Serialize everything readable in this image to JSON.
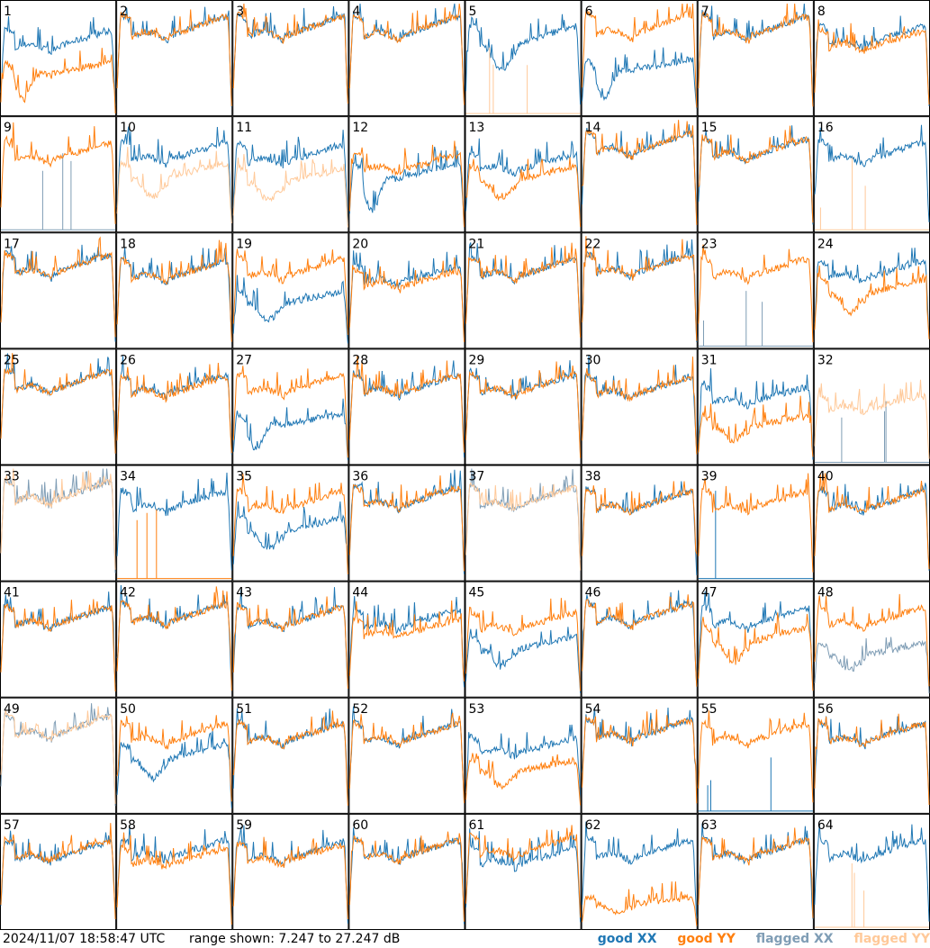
{
  "footer": {
    "timestamp": "2024/11/07 18:58:47 UTC",
    "range_text": "range shown: 7.247 to 27.247 dB"
  },
  "legend": [
    {
      "label": "good XX",
      "color": "#1f77b4"
    },
    {
      "label": "good YY",
      "color": "#ff7f0e"
    },
    {
      "label": "flagged XX",
      "color": "#7f9db5"
    },
    {
      "label": "flagged YY",
      "color": "#ffc999"
    }
  ],
  "chart_data": {
    "type": "line",
    "title": "",
    "grid_rows": 8,
    "grid_cols": 8,
    "ylim": [
      7.247,
      27.247
    ],
    "yunit": "dB",
    "series_names": [
      "good XX",
      "good YY",
      "flagged XX",
      "flagged YY"
    ],
    "panels": [
      {
        "label": "1",
        "xx": "good",
        "yy": "good",
        "xx_shape": "normal",
        "yy_shape": "deep_drop",
        "xx_level": 0.68,
        "yy_level": 0.42
      },
      {
        "label": "2",
        "xx": "good",
        "yy": "good",
        "xx_shape": "normal",
        "yy_shape": "normal",
        "xx_level": 0.8,
        "yy_level": 0.8
      },
      {
        "label": "3",
        "xx": "good",
        "yy": "good",
        "xx_shape": "normal",
        "yy_shape": "normal",
        "xx_level": 0.8,
        "yy_level": 0.8
      },
      {
        "label": "4",
        "xx": "good",
        "yy": "good",
        "xx_shape": "normal",
        "yy_shape": "normal",
        "xx_level": 0.8,
        "yy_level": 0.8
      },
      {
        "label": "5",
        "xx": "good",
        "yy": "flagged",
        "xx_shape": "dip",
        "yy_shape": "spikes_low",
        "xx_level": 0.72,
        "yy_level": 0.0
      },
      {
        "label": "6",
        "xx": "good",
        "yy": "good",
        "xx_shape": "deep_drop",
        "yy_shape": "normal",
        "xx_level": 0.45,
        "yy_level": 0.82
      },
      {
        "label": "7",
        "xx": "good",
        "yy": "good",
        "xx_shape": "normal",
        "yy_shape": "normal",
        "xx_level": 0.8,
        "yy_level": 0.8
      },
      {
        "label": "8",
        "xx": "good",
        "yy": "good",
        "xx_shape": "normal",
        "yy_shape": "normal",
        "xx_level": 0.72,
        "yy_level": 0.68
      },
      {
        "label": "9",
        "xx": "flagged",
        "yy": "good",
        "xx_shape": "spikes_low",
        "yy_shape": "normal",
        "xx_level": 0.0,
        "yy_level": 0.72
      },
      {
        "label": "10",
        "xx": "good",
        "yy": "flagged",
        "xx_shape": "normal",
        "yy_shape": "dip",
        "xx_level": 0.72,
        "yy_level": 0.55
      },
      {
        "label": "11",
        "xx": "good",
        "yy": "flagged",
        "xx_shape": "normal",
        "yy_shape": "dip",
        "xx_level": 0.7,
        "yy_level": 0.5
      },
      {
        "label": "12",
        "xx": "good",
        "yy": "good",
        "xx_shape": "deep_drop",
        "yy_shape": "normal",
        "xx_level": 0.55,
        "yy_level": 0.62
      },
      {
        "label": "13",
        "xx": "good",
        "yy": "good",
        "xx_shape": "normal",
        "yy_shape": "dip",
        "xx_level": 0.62,
        "yy_level": 0.52
      },
      {
        "label": "14",
        "xx": "good",
        "yy": "good",
        "xx_shape": "normal",
        "yy_shape": "normal",
        "xx_level": 0.8,
        "yy_level": 0.8
      },
      {
        "label": "15",
        "xx": "good",
        "yy": "good",
        "xx_shape": "normal",
        "yy_shape": "normal",
        "xx_level": 0.75,
        "yy_level": 0.75
      },
      {
        "label": "16",
        "xx": "good",
        "yy": "flagged",
        "xx_shape": "normal",
        "yy_shape": "spikes_low",
        "xx_level": 0.72,
        "yy_level": 0.0
      },
      {
        "label": "17",
        "xx": "good",
        "yy": "good",
        "xx_shape": "normal",
        "yy_shape": "normal",
        "xx_level": 0.75,
        "yy_level": 0.75
      },
      {
        "label": "18",
        "xx": "good",
        "yy": "good",
        "xx_shape": "normal",
        "yy_shape": "normal",
        "xx_level": 0.7,
        "yy_level": 0.7
      },
      {
        "label": "19",
        "xx": "good",
        "yy": "good",
        "xx_shape": "dip",
        "yy_shape": "normal",
        "xx_level": 0.45,
        "yy_level": 0.72
      },
      {
        "label": "20",
        "xx": "good",
        "yy": "good",
        "xx_shape": "normal",
        "yy_shape": "normal",
        "xx_level": 0.66,
        "yy_level": 0.62
      },
      {
        "label": "21",
        "xx": "good",
        "yy": "good",
        "xx_shape": "normal",
        "yy_shape": "normal",
        "xx_level": 0.72,
        "yy_level": 0.72
      },
      {
        "label": "22",
        "xx": "good",
        "yy": "good",
        "xx_shape": "normal",
        "yy_shape": "normal",
        "xx_level": 0.75,
        "yy_level": 0.75
      },
      {
        "label": "23",
        "xx": "flagged",
        "yy": "good",
        "xx_shape": "spikes_low",
        "yy_shape": "normal",
        "xx_level": 0.0,
        "yy_level": 0.72
      },
      {
        "label": "24",
        "xx": "good",
        "yy": "good",
        "xx_shape": "normal",
        "yy_shape": "dip",
        "xx_level": 0.7,
        "yy_level": 0.55
      },
      {
        "label": "25",
        "xx": "good",
        "yy": "good",
        "xx_shape": "normal",
        "yy_shape": "normal",
        "xx_level": 0.75,
        "yy_level": 0.75
      },
      {
        "label": "26",
        "xx": "good",
        "yy": "good",
        "xx_shape": "normal",
        "yy_shape": "normal",
        "xx_level": 0.72,
        "yy_level": 0.7
      },
      {
        "label": "27",
        "xx": "good",
        "yy": "good",
        "xx_shape": "deep_drop",
        "yy_shape": "normal",
        "xx_level": 0.4,
        "yy_level": 0.72
      },
      {
        "label": "28",
        "xx": "good",
        "yy": "good",
        "xx_shape": "normal",
        "yy_shape": "normal",
        "xx_level": 0.72,
        "yy_level": 0.72
      },
      {
        "label": "29",
        "xx": "good",
        "yy": "good",
        "xx_shape": "normal",
        "yy_shape": "normal",
        "xx_level": 0.72,
        "yy_level": 0.72
      },
      {
        "label": "30",
        "xx": "good",
        "yy": "good",
        "xx_shape": "normal",
        "yy_shape": "normal",
        "xx_level": 0.7,
        "yy_level": 0.7
      },
      {
        "label": "31",
        "xx": "good",
        "yy": "good",
        "xx_shape": "normal",
        "yy_shape": "dip",
        "xx_level": 0.62,
        "yy_level": 0.38
      },
      {
        "label": "32",
        "xx": "flagged",
        "yy": "flagged",
        "xx_shape": "spikes_low",
        "yy_shape": "normal",
        "xx_level": 0.0,
        "yy_level": 0.55
      },
      {
        "label": "33",
        "xx": "flagged",
        "yy": "flagged",
        "xx_shape": "normal",
        "yy_shape": "normal",
        "xx_level": 0.8,
        "yy_level": 0.8
      },
      {
        "label": "34",
        "xx": "good",
        "yy": "good",
        "xx_shape": "normal",
        "yy_shape": "spikes_low",
        "xx_level": 0.72,
        "yy_level": 0.0
      },
      {
        "label": "35",
        "xx": "good",
        "yy": "good",
        "xx_shape": "dip",
        "yy_shape": "normal",
        "xx_level": 0.5,
        "yy_level": 0.72
      },
      {
        "label": "36",
        "xx": "good",
        "yy": "good",
        "xx_shape": "normal",
        "yy_shape": "normal",
        "xx_level": 0.75,
        "yy_level": 0.75
      },
      {
        "label": "37",
        "xx": "flagged",
        "yy": "flagged",
        "xx_shape": "normal",
        "yy_shape": "normal",
        "xx_level": 0.75,
        "yy_level": 0.75
      },
      {
        "label": "38",
        "xx": "good",
        "yy": "good",
        "xx_shape": "normal",
        "yy_shape": "normal",
        "xx_level": 0.72,
        "yy_level": 0.72
      },
      {
        "label": "39",
        "xx": "good",
        "yy": "good",
        "xx_shape": "spike_single",
        "yy_shape": "normal",
        "xx_level": 0.0,
        "yy_level": 0.72
      },
      {
        "label": "40",
        "xx": "good",
        "yy": "good",
        "xx_shape": "normal",
        "yy_shape": "normal",
        "xx_level": 0.72,
        "yy_level": 0.72
      },
      {
        "label": "41",
        "xx": "good",
        "yy": "good",
        "xx_shape": "normal",
        "yy_shape": "normal",
        "xx_level": 0.72,
        "yy_level": 0.72
      },
      {
        "label": "42",
        "xx": "good",
        "yy": "good",
        "xx_shape": "normal",
        "yy_shape": "normal",
        "xx_level": 0.75,
        "yy_level": 0.75
      },
      {
        "label": "43",
        "xx": "good",
        "yy": "good",
        "xx_shape": "normal",
        "yy_shape": "normal",
        "xx_level": 0.72,
        "yy_level": 0.72
      },
      {
        "label": "44",
        "xx": "good",
        "yy": "good",
        "xx_shape": "normal",
        "yy_shape": "normal",
        "xx_level": 0.7,
        "yy_level": 0.62
      },
      {
        "label": "45",
        "xx": "good",
        "yy": "good",
        "xx_shape": "dip",
        "yy_shape": "normal",
        "xx_level": 0.48,
        "yy_level": 0.68
      },
      {
        "label": "46",
        "xx": "good",
        "yy": "good",
        "xx_shape": "normal",
        "yy_shape": "normal",
        "xx_level": 0.75,
        "yy_level": 0.75
      },
      {
        "label": "47",
        "xx": "good",
        "yy": "good",
        "xx_shape": "normal",
        "yy_shape": "dip",
        "xx_level": 0.72,
        "yy_level": 0.55
      },
      {
        "label": "48",
        "xx": "flagged",
        "yy": "good",
        "xx_shape": "dip",
        "yy_shape": "normal",
        "xx_level": 0.42,
        "yy_level": 0.72
      },
      {
        "label": "49",
        "xx": "flagged",
        "yy": "flagged",
        "xx_shape": "normal",
        "yy_shape": "normal",
        "xx_level": 0.78,
        "yy_level": 0.78
      },
      {
        "label": "50",
        "xx": "good",
        "yy": "good",
        "xx_shape": "dip",
        "yy_shape": "normal",
        "xx_level": 0.55,
        "yy_level": 0.72
      },
      {
        "label": "51",
        "xx": "good",
        "yy": "good",
        "xx_shape": "normal",
        "yy_shape": "normal",
        "xx_level": 0.72,
        "yy_level": 0.72
      },
      {
        "label": "52",
        "xx": "good",
        "yy": "good",
        "xx_shape": "normal",
        "yy_shape": "normal",
        "xx_level": 0.72,
        "yy_level": 0.72
      },
      {
        "label": "53",
        "xx": "good",
        "yy": "good",
        "xx_shape": "normal",
        "yy_shape": "dip",
        "xx_level": 0.6,
        "yy_level": 0.42
      },
      {
        "label": "54",
        "xx": "good",
        "yy": "good",
        "xx_shape": "normal",
        "yy_shape": "normal",
        "xx_level": 0.75,
        "yy_level": 0.75
      },
      {
        "label": "55",
        "xx": "good",
        "yy": "good",
        "xx_shape": "spikes_low",
        "yy_shape": "normal",
        "xx_level": 0.0,
        "yy_level": 0.72
      },
      {
        "label": "56",
        "xx": "good",
        "yy": "good",
        "xx_shape": "normal",
        "yy_shape": "normal",
        "xx_level": 0.72,
        "yy_level": 0.72
      },
      {
        "label": "57",
        "xx": "good",
        "yy": "good",
        "xx_shape": "normal",
        "yy_shape": "normal",
        "xx_level": 0.7,
        "yy_level": 0.72
      },
      {
        "label": "58",
        "xx": "good",
        "yy": "good",
        "xx_shape": "normal",
        "yy_shape": "normal",
        "xx_level": 0.72,
        "yy_level": 0.65
      },
      {
        "label": "59",
        "xx": "good",
        "yy": "good",
        "xx_shape": "normal",
        "yy_shape": "normal",
        "xx_level": 0.7,
        "yy_level": 0.68
      },
      {
        "label": "60",
        "xx": "good",
        "yy": "good",
        "xx_shape": "normal",
        "yy_shape": "normal",
        "xx_level": 0.72,
        "yy_level": 0.72
      },
      {
        "label": "61",
        "xx": "good",
        "yy": "good",
        "xx_shape": "normal",
        "yy_shape": "normal",
        "xx_level": 0.65,
        "yy_level": 0.75
      },
      {
        "label": "62",
        "xx": "good",
        "yy": "good",
        "xx_shape": "normal",
        "yy_shape": "dip",
        "xx_level": 0.72,
        "yy_level": 0.25
      },
      {
        "label": "63",
        "xx": "good",
        "yy": "good",
        "xx_shape": "normal",
        "yy_shape": "normal",
        "xx_level": 0.72,
        "yy_level": 0.72
      },
      {
        "label": "64",
        "xx": "good",
        "yy": "flagged",
        "xx_shape": "normal",
        "yy_shape": "spikes_low",
        "xx_level": 0.72,
        "yy_level": 0.0
      }
    ]
  }
}
